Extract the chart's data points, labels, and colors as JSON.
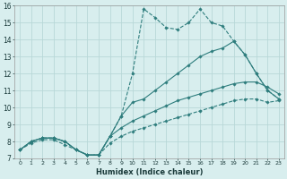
{
  "xlabel": "Humidex (Indice chaleur)",
  "x": [
    0,
    1,
    2,
    3,
    4,
    5,
    6,
    7,
    8,
    9,
    10,
    11,
    12,
    13,
    14,
    15,
    16,
    17,
    18,
    19,
    20,
    21,
    22,
    23
  ],
  "line_top": [
    7.5,
    8.0,
    8.2,
    8.2,
    8.0,
    7.5,
    7.2,
    7.2,
    8.3,
    9.5,
    12.0,
    15.8,
    15.3,
    14.7,
    14.6,
    15.0,
    15.8,
    15.0,
    14.8,
    13.9,
    13.1,
    12.0,
    11.0,
    10.5
  ],
  "line_mid_upper": [
    7.5,
    8.0,
    8.2,
    8.2,
    8.0,
    7.5,
    7.2,
    7.2,
    8.3,
    9.5,
    10.3,
    10.5,
    11.0,
    11.5,
    12.0,
    12.5,
    13.0,
    13.3,
    13.5,
    13.9,
    13.1,
    12.0,
    11.0,
    10.5
  ],
  "line_mid_lower": [
    7.5,
    8.0,
    8.2,
    8.2,
    8.0,
    7.5,
    7.2,
    7.2,
    8.3,
    8.8,
    9.2,
    9.5,
    9.8,
    10.1,
    10.4,
    10.6,
    10.8,
    11.0,
    11.2,
    11.4,
    11.5,
    11.5,
    11.2,
    10.8
  ],
  "line_bot": [
    7.5,
    7.9,
    8.1,
    8.1,
    7.8,
    7.5,
    7.2,
    7.2,
    7.9,
    8.3,
    8.6,
    8.8,
    9.0,
    9.2,
    9.4,
    9.6,
    9.8,
    10.0,
    10.2,
    10.4,
    10.5,
    10.5,
    10.3,
    10.4
  ],
  "color": "#2e7d7d",
  "bg_color": "#d8eeee",
  "grid_color": "#b8d8d8",
  "ylim": [
    7,
    16
  ],
  "xlim_min": -0.5,
  "xlim_max": 23.5,
  "yticks": [
    7,
    8,
    9,
    10,
    11,
    12,
    13,
    14,
    15,
    16
  ],
  "xticks": [
    0,
    1,
    2,
    3,
    4,
    5,
    6,
    7,
    8,
    9,
    10,
    11,
    12,
    13,
    14,
    15,
    16,
    17,
    18,
    19,
    20,
    21,
    22,
    23
  ]
}
